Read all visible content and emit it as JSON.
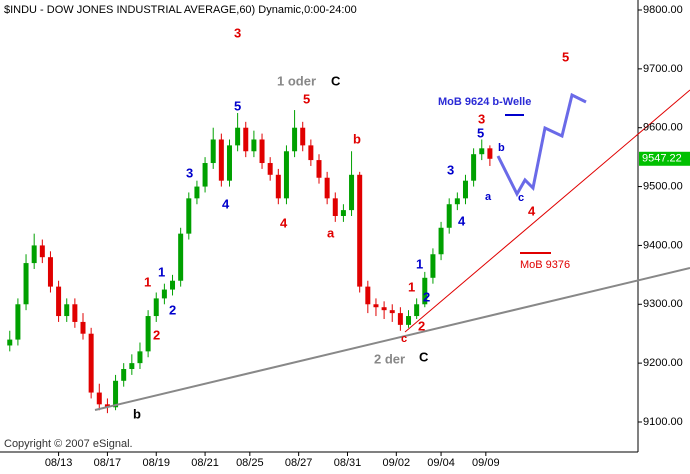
{
  "chart_data": {
    "type": "candlestick",
    "title": "$INDU - DOW JONES INDUSTRIAL AVERAGE,60) Dynamic,0:00-24:00",
    "copyright": "Copyright © 2007 eSignal.",
    "up_color": "#00a000",
    "down_color": "#e00000",
    "open": [
      9230,
      9240,
      9300,
      9370,
      9400,
      9380,
      9330,
      9280,
      9300,
      9270,
      9250,
      9150,
      9130,
      9125,
      9170,
      9190,
      9200,
      9220,
      9280,
      9310,
      9325,
      9340,
      9420,
      9480,
      9500,
      9540,
      9580,
      9510,
      9570,
      9600,
      9560,
      9580,
      9540,
      9520,
      9480,
      9560,
      9600,
      9570,
      9545,
      9515,
      9480,
      9450,
      9460,
      9520,
      9330,
      9300,
      9295,
      9290,
      9285,
      9265,
      9280,
      9300,
      9345,
      9385,
      9430,
      9470,
      9480,
      9510,
      9555,
      9565
    ],
    "high": [
      9255,
      9310,
      9385,
      9420,
      9410,
      9390,
      9340,
      9310,
      9310,
      9285,
      9260,
      9165,
      9140,
      9180,
      9200,
      9215,
      9235,
      9290,
      9320,
      9335,
      9350,
      9430,
      9490,
      9510,
      9550,
      9600,
      9590,
      9580,
      9625,
      9610,
      9595,
      9590,
      9550,
      9530,
      9570,
      9630,
      9610,
      9580,
      9555,
      9525,
      9490,
      9470,
      9560,
      9525,
      9340,
      9310,
      9305,
      9300,
      9295,
      9290,
      9310,
      9355,
      9395,
      9440,
      9480,
      9490,
      9520,
      9565,
      9580,
      9570
    ],
    "low": [
      9220,
      9230,
      9290,
      9360,
      9370,
      9320,
      9270,
      9270,
      9260,
      9240,
      9140,
      9120,
      9115,
      9120,
      9160,
      9180,
      9190,
      9210,
      9270,
      9300,
      9315,
      9330,
      9410,
      9470,
      9490,
      9530,
      9500,
      9500,
      9560,
      9550,
      9550,
      9530,
      9510,
      9470,
      9470,
      9550,
      9560,
      9535,
      9505,
      9470,
      9440,
      9440,
      9450,
      9320,
      9285,
      9280,
      9275,
      9270,
      9255,
      9260,
      9275,
      9295,
      9335,
      9375,
      9420,
      9460,
      9470,
      9500,
      9545,
      9535
    ],
    "close": [
      9240,
      9300,
      9370,
      9400,
      9380,
      9330,
      9280,
      9300,
      9270,
      9250,
      9150,
      9130,
      9125,
      9170,
      9190,
      9200,
      9220,
      9280,
      9310,
      9325,
      9340,
      9420,
      9480,
      9500,
      9540,
      9580,
      9510,
      9570,
      9600,
      9560,
      9580,
      9540,
      9520,
      9480,
      9560,
      9600,
      9570,
      9545,
      9515,
      9480,
      9450,
      9460,
      9520,
      9330,
      9300,
      9295,
      9290,
      9285,
      9265,
      9280,
      9300,
      9345,
      9385,
      9430,
      9470,
      9480,
      9510,
      9555,
      9565,
      9547.22
    ],
    "last_price": 9547.22,
    "xlim": [
      -1.2,
      77.2
    ],
    "xticks": [
      {
        "value": 6,
        "label": "08/13"
      },
      {
        "value": 12,
        "label": "08/17"
      },
      {
        "value": 18,
        "label": "08/19"
      },
      {
        "value": 24,
        "label": "08/21"
      },
      {
        "value": 29.5,
        "label": "08/25"
      },
      {
        "value": 35.5,
        "label": "08/27"
      },
      {
        "value": 41.5,
        "label": "08/31"
      },
      {
        "value": 47.5,
        "label": "09/02"
      },
      {
        "value": 53,
        "label": "09/04"
      },
      {
        "value": 58.5,
        "label": "09/09"
      }
    ],
    "ylim": [
      9049,
      9817
    ],
    "yticks": [
      {
        "value": 9100,
        "label": "9100.00"
      },
      {
        "value": 9200,
        "label": "9200.00"
      },
      {
        "value": 9300,
        "label": "9300.00"
      },
      {
        "value": 9400,
        "label": "9400.00"
      },
      {
        "value": 9500,
        "label": "9500.00"
      },
      {
        "value": 9600,
        "label": "9600.00"
      },
      {
        "value": 9700,
        "label": "9700.00"
      },
      {
        "value": 9800,
        "label": "9800.00"
      }
    ],
    "annotations": [
      "1 oder",
      "C",
      "3",
      "5",
      "5",
      "3",
      "4",
      "4",
      "b",
      "a",
      "1",
      "1",
      "2",
      "2",
      "b",
      "3",
      "5",
      "3",
      "4",
      "b",
      "a",
      "c",
      "4",
      "5",
      "MoB 9624 b-Welle",
      "MoB 9376",
      "1",
      "1",
      "2",
      "2",
      "c",
      "2 der",
      "C"
    ]
  }
}
